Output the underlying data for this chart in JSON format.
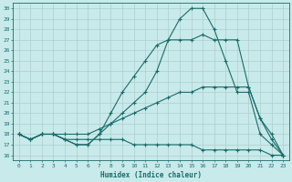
{
  "title": "",
  "xlabel": "Humidex (Indice chaleur)",
  "ylabel": "",
  "xlim": [
    -0.5,
    23.5
  ],
  "ylim": [
    15.5,
    30.5
  ],
  "yticks": [
    16,
    17,
    18,
    19,
    20,
    21,
    22,
    23,
    24,
    25,
    26,
    27,
    28,
    29,
    30
  ],
  "xticks": [
    0,
    1,
    2,
    3,
    4,
    5,
    6,
    7,
    8,
    9,
    10,
    11,
    12,
    13,
    14,
    15,
    16,
    17,
    18,
    19,
    20,
    21,
    22,
    23
  ],
  "background_color": "#c8eaea",
  "line_color": "#1a6b6b",
  "grid_color": "#b0cccc",
  "lines": [
    {
      "x": [
        0,
        1,
        2,
        3,
        4,
        5,
        6,
        7,
        8,
        9,
        10,
        11,
        12,
        13,
        14,
        15,
        16,
        17,
        18,
        19,
        20,
        21,
        22,
        23
      ],
      "y": [
        18,
        17.5,
        18,
        18,
        17.5,
        17,
        17,
        18,
        20,
        22,
        23.5,
        25,
        26.5,
        27,
        27,
        27,
        27.5,
        27,
        27,
        27,
        22.5,
        19.5,
        17.5,
        16
      ]
    },
    {
      "x": [
        0,
        1,
        2,
        3,
        4,
        5,
        6,
        7,
        8,
        9,
        10,
        11,
        12,
        13,
        14,
        15,
        16,
        17,
        18,
        19,
        20,
        21,
        22,
        23
      ],
      "y": [
        18,
        17.5,
        18,
        18,
        17.5,
        17,
        17,
        18,
        19,
        20,
        21,
        22,
        24,
        27,
        29,
        30,
        30,
        28,
        25,
        22,
        22,
        18,
        17,
        16
      ]
    },
    {
      "x": [
        0,
        1,
        2,
        3,
        4,
        5,
        6,
        7,
        8,
        9,
        10,
        11,
        12,
        13,
        14,
        15,
        16,
        17,
        18,
        19,
        20,
        21,
        22,
        23
      ],
      "y": [
        18,
        17.5,
        18,
        18,
        18,
        18,
        18,
        18.5,
        19,
        19.5,
        20,
        20.5,
        21,
        21.5,
        22,
        22,
        22.5,
        22.5,
        22.5,
        22.5,
        22.5,
        19.5,
        18,
        16
      ]
    },
    {
      "x": [
        0,
        1,
        2,
        3,
        4,
        5,
        6,
        7,
        8,
        9,
        10,
        11,
        12,
        13,
        14,
        15,
        16,
        17,
        18,
        19,
        20,
        21,
        22,
        23
      ],
      "y": [
        18,
        17.5,
        18,
        18,
        17.5,
        17.5,
        17.5,
        17.5,
        17.5,
        17.5,
        17,
        17,
        17,
        17,
        17,
        17,
        16.5,
        16.5,
        16.5,
        16.5,
        16.5,
        16.5,
        16,
        16
      ]
    }
  ]
}
